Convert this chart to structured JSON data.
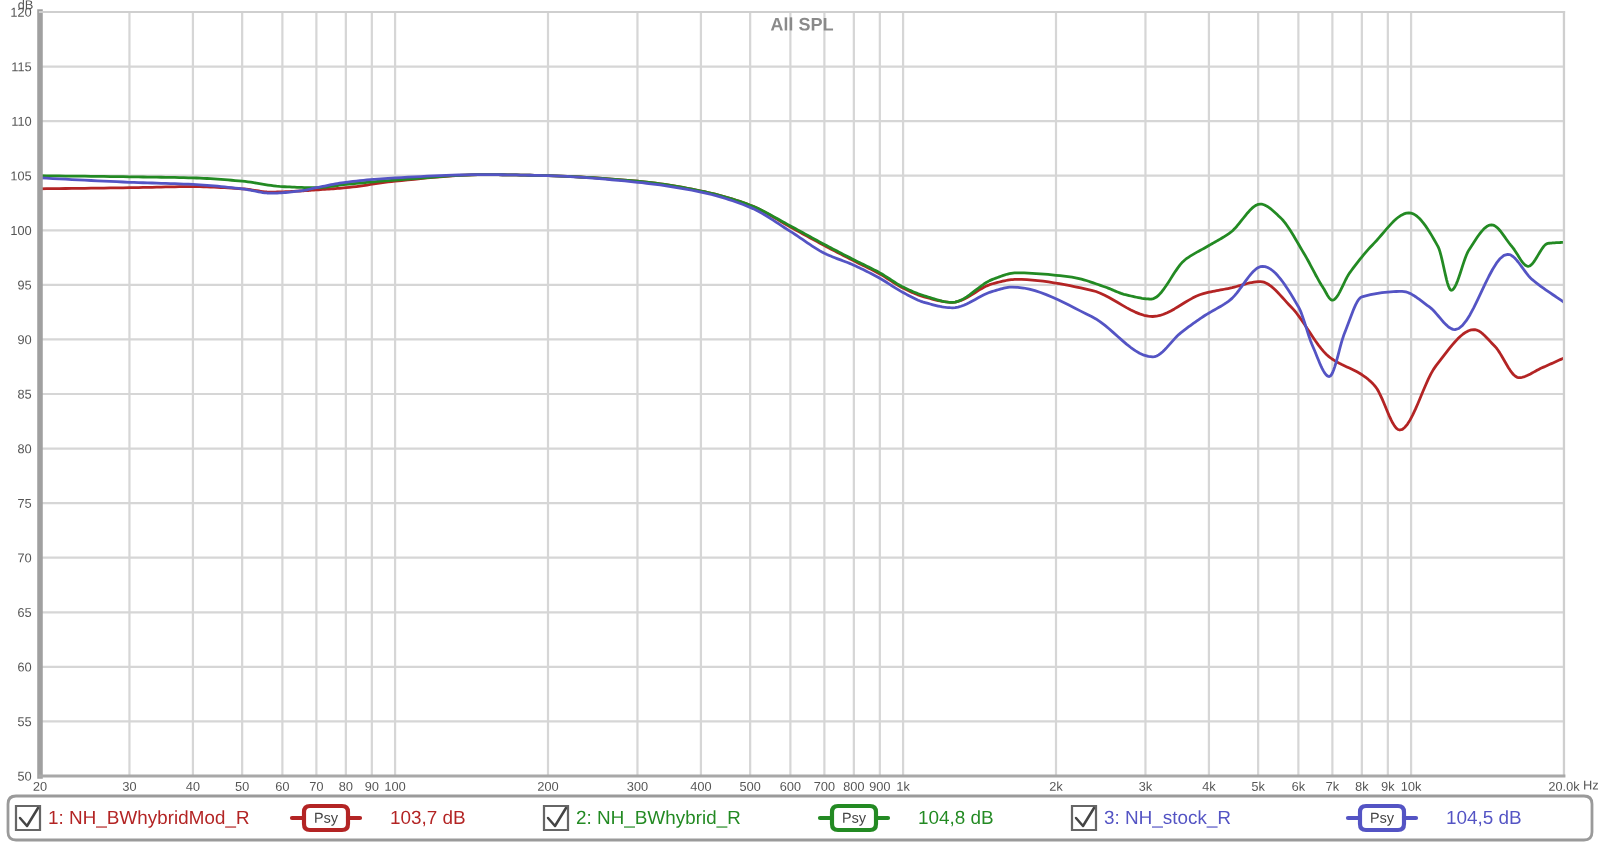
{
  "chart_data": {
    "type": "line",
    "title": "All SPL",
    "xlabel": "Hz",
    "ylabel": "dB",
    "log": "x",
    "xlim": [
      20,
      20000
    ],
    "ylim": [
      50,
      120
    ],
    "xticks": [
      20,
      30,
      40,
      50,
      60,
      70,
      80,
      90,
      100,
      200,
      300,
      400,
      500,
      600,
      700,
      800,
      900,
      {
        "value": 1000,
        "label": "1k"
      },
      {
        "value": 2000,
        "label": "2k"
      },
      {
        "value": 3000,
        "label": "3k"
      },
      {
        "value": 4000,
        "label": "4k"
      },
      {
        "value": 5000,
        "label": "5k"
      },
      {
        "value": 6000,
        "label": "6k"
      },
      {
        "value": 7000,
        "label": "7k"
      },
      {
        "value": 8000,
        "label": "8k"
      },
      {
        "value": 9000,
        "label": "9k"
      },
      {
        "value": 10000,
        "label": "10k"
      },
      {
        "value": 20000,
        "label": "20.0k"
      }
    ],
    "yticks": [
      50,
      55,
      60,
      65,
      70,
      75,
      80,
      85,
      90,
      95,
      100,
      105,
      110,
      115,
      120
    ],
    "grid": true,
    "legend": "bottom",
    "annotations": [
      "Psy",
      "103,7 dB",
      "Psy",
      "104,8 dB",
      "Psy",
      "104,5 dB"
    ],
    "series": [
      {
        "name": "1: NH_BWhybridMod_R",
        "color": "#b32424",
        "x": [
          20,
          30,
          40,
          50,
          57,
          65,
          70,
          80,
          100,
          150,
          200,
          300,
          400,
          500,
          600,
          700,
          800,
          900,
          1000,
          1100,
          1250,
          1500,
          1670,
          2350,
          3100,
          3900,
          4400,
          5050,
          5800,
          6900,
          8100,
          8500,
          9500,
          11200,
          13300,
          14600,
          16300,
          18100,
          20000
        ],
        "values": [
          103.8,
          103.9,
          104.0,
          103.8,
          103.5,
          103.6,
          103.7,
          103.9,
          104.5,
          105.1,
          105.0,
          104.5,
          103.6,
          102.3,
          100.3,
          98.6,
          97.2,
          96.0,
          94.7,
          93.9,
          93.4,
          95.1,
          95.5,
          94.5,
          92.1,
          94.2,
          94.7,
          95.3,
          93.0,
          88.4,
          86.6,
          85.7,
          81.7,
          87.6,
          90.9,
          89.4,
          86.5,
          87.4,
          88.3
        ]
      },
      {
        "name": "2: NH_BWhybrid_R",
        "color": "#238a23",
        "x": [
          20,
          30,
          40,
          50,
          60,
          70,
          80,
          100,
          150,
          200,
          300,
          400,
          500,
          600,
          700,
          800,
          900,
          1000,
          1100,
          1250,
          1500,
          1670,
          2150,
          2500,
          2740,
          3080,
          3590,
          4000,
          4410,
          5050,
          5520,
          6150,
          6700,
          7000,
          7570,
          8450,
          9900,
          11300,
          12000,
          13000,
          14400,
          15800,
          17000,
          18600,
          20000
        ],
        "values": [
          105.0,
          104.9,
          104.8,
          104.5,
          104.0,
          103.9,
          104.2,
          104.6,
          105.1,
          105.0,
          104.5,
          103.6,
          102.3,
          100.4,
          98.7,
          97.3,
          96.1,
          94.8,
          94.0,
          93.4,
          95.5,
          96.1,
          95.7,
          94.8,
          94.1,
          93.7,
          97.3,
          98.6,
          99.8,
          102.4,
          101.2,
          97.9,
          94.8,
          93.6,
          96.1,
          98.8,
          101.6,
          98.5,
          94.5,
          98.2,
          100.5,
          98.5,
          96.7,
          98.8,
          98.9
        ]
      },
      {
        "name": "3: NH_stock_R",
        "color": "#5454c4",
        "x": [
          20,
          30,
          40,
          50,
          57,
          65,
          70,
          80,
          100,
          150,
          200,
          300,
          400,
          500,
          600,
          700,
          800,
          900,
          1000,
          1100,
          1250,
          1500,
          1640,
          2350,
          3100,
          3520,
          3900,
          4400,
          5100,
          6000,
          6400,
          6900,
          7400,
          8000,
          9600,
          10850,
          12200,
          15500,
          17300,
          20000
        ],
        "values": [
          104.8,
          104.4,
          104.2,
          103.8,
          103.4,
          103.6,
          103.9,
          104.4,
          104.8,
          105.1,
          105.0,
          104.4,
          103.5,
          102.1,
          99.9,
          97.9,
          96.8,
          95.6,
          94.3,
          93.4,
          92.9,
          94.4,
          94.8,
          92.1,
          88.4,
          90.6,
          92.1,
          93.6,
          96.7,
          93.0,
          89.4,
          86.6,
          90.6,
          93.9,
          94.4,
          93.0,
          90.9,
          97.8,
          95.5,
          93.4
        ]
      }
    ]
  }
}
